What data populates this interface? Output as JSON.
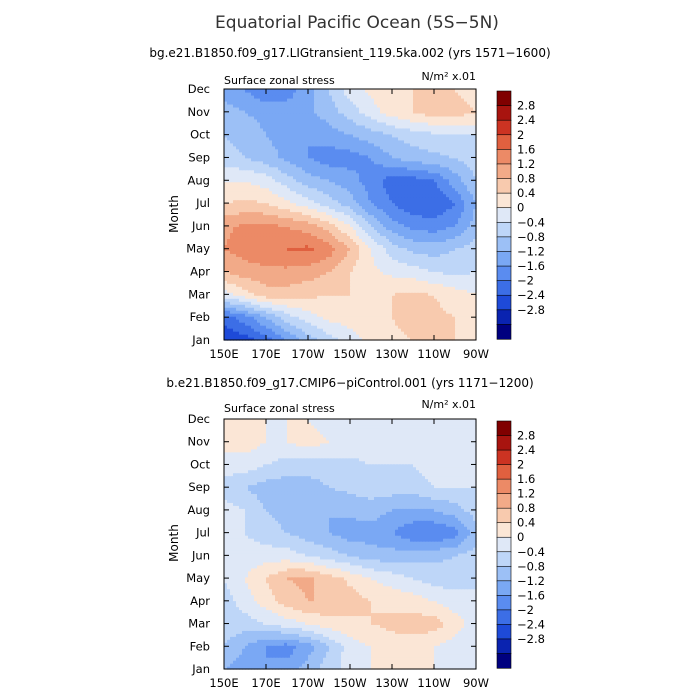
{
  "title": "Equatorial Pacific Ocean (5S−5N)",
  "colors": {
    "levels": [
      "#00007f",
      "#0a23b0",
      "#1e4ad8",
      "#3c6ee6",
      "#5a8cf0",
      "#7aa8f4",
      "#9cc0f6",
      "#bed6f8",
      "#dfe8f7",
      "#fbe6d6",
      "#f8caae",
      "#f2aa88",
      "#ec8a66",
      "#e0603f",
      "#cc3322",
      "#a8140f",
      "#800000"
    ]
  },
  "colorbar": {
    "labels": [
      "2.8",
      "2.4",
      "2",
      "1.6",
      "1.2",
      "0.8",
      "0.4",
      "0",
      "−0.4",
      "−0.8",
      "−1.2",
      "−1.6",
      "−2",
      "−2.4",
      "−2.8"
    ]
  },
  "chart_data": [
    {
      "type": "heatmap",
      "subtitle": "bg.e21.B1850.f09_g17.LIGtransient_119.5ka.002 (yrs 1571−1600)",
      "left_label": "Surface zonal stress",
      "units_label": "N/m² x.01",
      "ylabel": "Month",
      "xlabel": "",
      "x_ticks": [
        "150E",
        "170E",
        "170W",
        "150W",
        "130W",
        "110W",
        "90W"
      ],
      "y_ticks": [
        "Jan",
        "Feb",
        "Mar",
        "Apr",
        "May",
        "Jun",
        "Jul",
        "Aug",
        "Sep",
        "Oct",
        "Nov",
        "Dec"
      ],
      "contour_levels": [
        -2.8,
        -2.4,
        -2,
        -1.6,
        -1.2,
        -0.8,
        -0.4,
        0,
        0.4,
        0.8,
        1.2,
        1.6,
        2,
        2.4,
        2.8
      ],
      "x_lon": [
        150,
        160,
        170,
        180,
        190,
        200,
        210,
        220,
        230,
        240,
        250,
        260,
        270
      ],
      "values": [
        [
          -2.4,
          -2.2,
          -1.8,
          -1.2,
          -0.6,
          -0.2,
          0.2,
          0.5,
          0.6,
          0.8,
          0.8,
          0.8,
          0.6
        ],
        [
          -1.8,
          -1.4,
          -0.8,
          -0.2,
          0.2,
          0.5,
          0.6,
          0.7,
          0.8,
          1.1,
          0.9,
          0.8,
          0.6
        ],
        [
          0.2,
          0.6,
          1.0,
          1.0,
          0.9,
          0.8,
          0.8,
          0.8,
          0.8,
          0.9,
          0.8,
          0.6,
          0.4
        ],
        [
          1.2,
          1.4,
          1.5,
          1.5,
          1.4,
          1.2,
          0.8,
          0.5,
          0.3,
          0.2,
          0.0,
          -0.1,
          0.0
        ],
        [
          1.6,
          1.8,
          1.9,
          2.0,
          2.1,
          1.8,
          1.2,
          0.4,
          -0.2,
          -0.5,
          -0.6,
          -0.4,
          -0.2
        ],
        [
          1.5,
          1.7,
          1.7,
          1.6,
          1.4,
          1.0,
          0.4,
          -0.4,
          -1.0,
          -1.3,
          -1.4,
          -1.2,
          -0.6
        ],
        [
          0.8,
          0.9,
          0.8,
          0.5,
          0.2,
          -0.2,
          -0.6,
          -1.2,
          -1.6,
          -1.9,
          -2.0,
          -1.6,
          -0.8
        ],
        [
          0.4,
          0.4,
          0.2,
          -0.2,
          -0.6,
          -0.8,
          -1.0,
          -1.4,
          -1.8,
          -1.8,
          -1.6,
          -1.0,
          -0.4
        ],
        [
          -0.2,
          -0.4,
          -0.6,
          -0.9,
          -1.2,
          -1.4,
          -1.4,
          -1.2,
          -0.8,
          -0.6,
          -0.5,
          -0.4,
          -0.2
        ],
        [
          -0.4,
          -0.6,
          -0.8,
          -1.0,
          -1.2,
          -1.0,
          -0.8,
          -0.6,
          -0.4,
          -0.2,
          -0.1,
          0.0,
          0.0
        ],
        [
          -0.6,
          -0.8,
          -0.9,
          -1.0,
          -0.9,
          -0.6,
          -0.2,
          0.2,
          0.6,
          0.8,
          1.0,
          1.0,
          0.8
        ],
        [
          -1.0,
          -1.2,
          -1.6,
          -1.4,
          -1.0,
          -0.4,
          0.2,
          0.5,
          0.8,
          0.8,
          0.8,
          0.8,
          0.6
        ]
      ]
    },
    {
      "type": "heatmap",
      "subtitle": "b.e21.B1850.f09_g17.CMIP6−piControl.001 (yrs 1171−1200)",
      "left_label": "Surface zonal stress",
      "units_label": "N/m² x.01",
      "ylabel": "Month",
      "xlabel": "",
      "x_ticks": [
        "150E",
        "170E",
        "170W",
        "150W",
        "130W",
        "110W",
        "90W"
      ],
      "y_ticks": [
        "Jan",
        "Feb",
        "Mar",
        "Apr",
        "May",
        "Jun",
        "Jul",
        "Aug",
        "Sep",
        "Oct",
        "Nov",
        "Dec"
      ],
      "contour_levels": [
        -2.8,
        -2.4,
        -2,
        -1.6,
        -1.2,
        -0.8,
        -0.4,
        0,
        0.4,
        0.8,
        1.2,
        1.6,
        2,
        2.4,
        2.8
      ],
      "x_lon": [
        150,
        160,
        170,
        180,
        190,
        200,
        210,
        220,
        230,
        240,
        250,
        260,
        270
      ],
      "values": [
        [
          -0.8,
          -1.0,
          -1.2,
          -1.0,
          -0.6,
          -0.2,
          0.2,
          0.4,
          0.6,
          0.6,
          0.4,
          0.2,
          0.0
        ],
        [
          -0.4,
          -0.8,
          -1.2,
          -1.4,
          -1.0,
          -0.4,
          0.2,
          0.4,
          0.6,
          0.6,
          0.4,
          0.2,
          0.0
        ],
        [
          -0.2,
          -0.2,
          0.0,
          0.2,
          0.4,
          0.6,
          0.7,
          0.8,
          0.9,
          1.0,
          1.0,
          0.6,
          0.2
        ],
        [
          -0.2,
          0.2,
          0.6,
          1.0,
          1.2,
          1.2,
          1.0,
          0.8,
          0.7,
          0.6,
          0.4,
          0.2,
          0.0
        ],
        [
          0.0,
          0.4,
          0.8,
          1.2,
          1.3,
          1.0,
          0.7,
          0.4,
          0.2,
          0.0,
          -0.2,
          -0.2,
          0.0
        ],
        [
          0.2,
          0.2,
          0.2,
          0.2,
          0.0,
          -0.2,
          -0.4,
          -0.6,
          -0.6,
          -0.6,
          -0.5,
          -0.4,
          -0.2
        ],
        [
          0.2,
          0.0,
          -0.2,
          -0.4,
          -0.6,
          -0.8,
          -1.0,
          -1.0,
          -1.2,
          -1.5,
          -1.6,
          -1.4,
          -0.6
        ],
        [
          0.2,
          0.0,
          -0.4,
          -0.6,
          -0.8,
          -0.8,
          -0.7,
          -0.6,
          -0.8,
          -0.9,
          -0.8,
          -0.6,
          -0.2
        ],
        [
          -0.2,
          -0.4,
          -0.6,
          -0.6,
          -0.6,
          -0.4,
          -0.3,
          -0.2,
          -0.2,
          -0.2,
          0.0,
          0.0,
          0.0
        ],
        [
          0.2,
          0.2,
          0.0,
          -0.2,
          -0.2,
          -0.2,
          -0.1,
          0.0,
          0.0,
          0.0,
          0.2,
          0.2,
          0.2
        ],
        [
          0.6,
          0.6,
          0.4,
          0.4,
          0.6,
          0.4,
          0.2,
          0.2,
          0.2,
          0.2,
          0.2,
          0.4,
          0.4
        ],
        [
          0.4,
          0.4,
          0.4,
          0.4,
          0.4,
          0.2,
          0.2,
          0.2,
          0.2,
          0.2,
          0.4,
          0.4,
          0.4
        ]
      ]
    }
  ]
}
